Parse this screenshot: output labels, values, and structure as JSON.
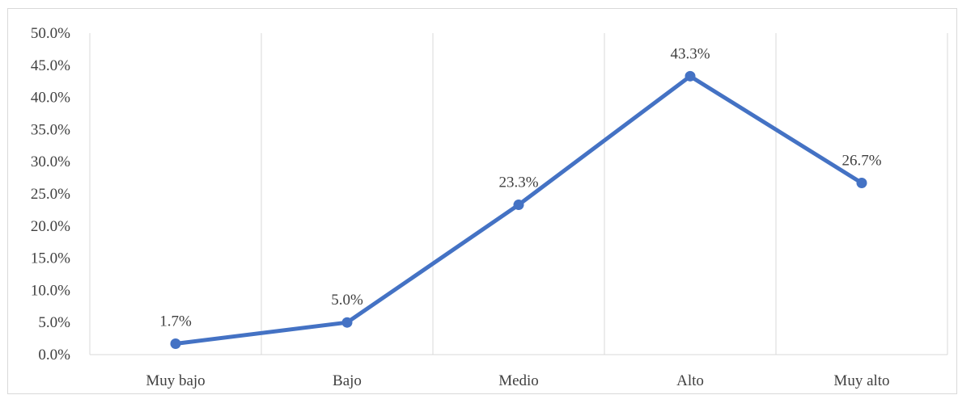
{
  "chart_data": {
    "type": "line",
    "title": "",
    "xlabel": "",
    "ylabel": "",
    "categories": [
      "Muy bajo",
      "Bajo",
      "Medio",
      "Alto",
      "Muy alto"
    ],
    "series": [
      {
        "values": [
          1.7,
          5.0,
          23.3,
          43.3,
          26.7
        ],
        "data_labels": [
          "1.7%",
          "5.0%",
          "23.3%",
          "43.3%",
          "26.7%"
        ],
        "color": "#4472c4"
      }
    ],
    "ylim": [
      0,
      50
    ],
    "y_ticks": [
      0,
      5,
      10,
      15,
      20,
      25,
      30,
      35,
      40,
      45,
      50
    ],
    "y_tick_labels": [
      "0.0%",
      "5.0%",
      "10.0%",
      "15.0%",
      "20.0%",
      "25.0%",
      "30.0%",
      "35.0%",
      "40.0%",
      "45.0%",
      "50.0%"
    ],
    "grid": "vertical",
    "grid_color": "#d9d9d9",
    "axis_color": "#d9d9d9",
    "legend": "none"
  }
}
